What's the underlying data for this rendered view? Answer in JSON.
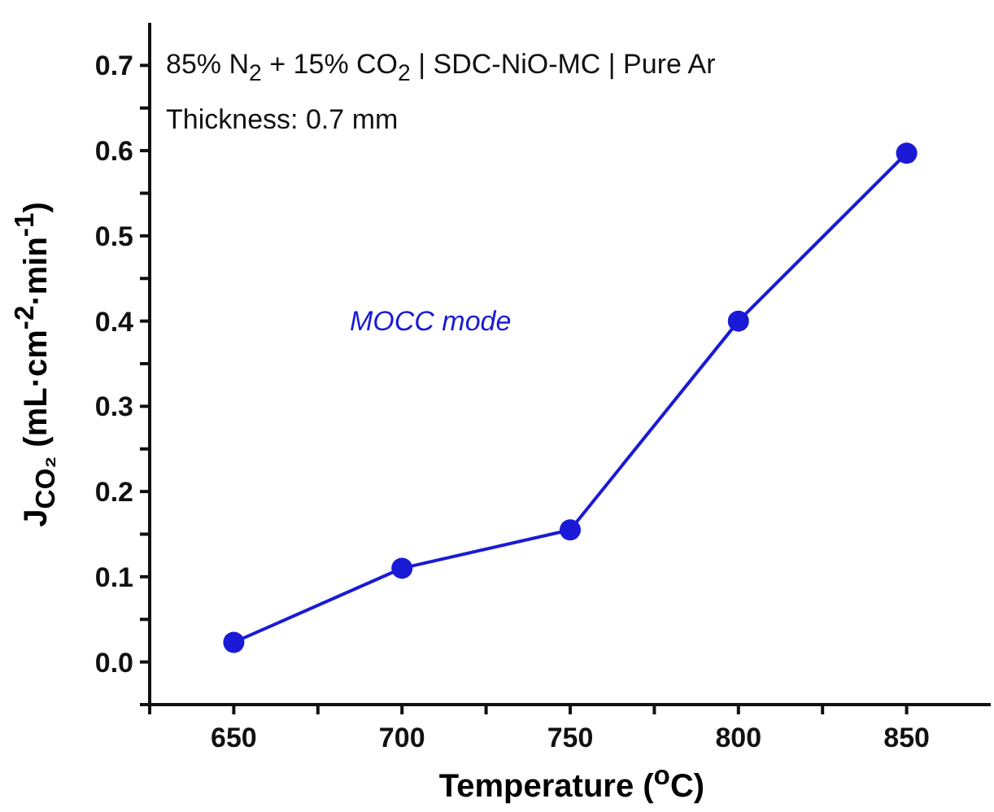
{
  "chart_data": {
    "type": "line",
    "xlabel": "Temperature ($^{o}$C)",
    "ylabel": "J$_{CO₂}$ (mL·cm$^{-2}$·min$^{-1}$)",
    "annotations": [
      "85% N$_{2}$ + 15% CO$_{2}$ | SDC-NiO-MC | Pure Ar",
      "Thickness: 0.7 mm",
      "MOCC mode"
    ],
    "x": [
      650,
      700,
      750,
      800,
      850
    ],
    "series": [
      {
        "color": "#1a1ad6",
        "values": [
          0.023,
          0.11,
          0.155,
          0.4,
          0.597
        ]
      }
    ],
    "xlim": [
      625,
      875
    ],
    "xticks": [
      {
        "value": 625,
        "label": null
      },
      650,
      {
        "value": 675,
        "label": null
      },
      700,
      {
        "value": 725,
        "label": null
      },
      750,
      {
        "value": 775,
        "label": null
      },
      800,
      {
        "value": 825,
        "label": null
      },
      850
    ],
    "ylim": [
      -0.05,
      0.75
    ],
    "yticks": [
      {
        "value": -0.05,
        "label": null
      },
      {
        "value": 0,
        "label": "0.0"
      },
      {
        "value": 0.05,
        "label": null
      },
      0.1,
      {
        "value": 0.15,
        "label": null
      },
      0.2,
      {
        "value": 0.25,
        "label": null
      },
      0.3,
      {
        "value": 0.35,
        "label": null
      },
      0.4,
      {
        "value": 0.45,
        "label": null
      },
      0.5,
      {
        "value": 0.55,
        "label": null
      },
      0.6,
      {
        "value": 0.65,
        "label": null
      },
      0.7
    ],
    "marker": "circle",
    "line_style": "solid",
    "grid": false
  }
}
